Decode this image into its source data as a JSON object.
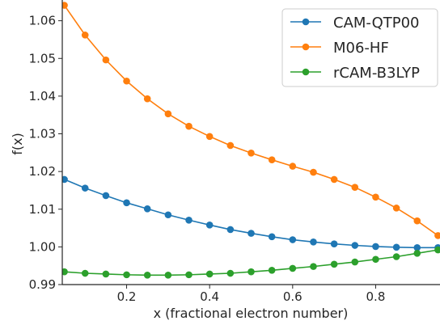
{
  "chart_data": {
    "type": "line",
    "title": "",
    "xlabel": "x (fractional electron number)",
    "ylabel": "f(x)",
    "xlim": [
      0.045,
      0.955
    ],
    "ylim": [
      0.99,
      1.0655
    ],
    "xticks": [
      0.2,
      0.4,
      0.6,
      0.8
    ],
    "xtick_labels": [
      "0.2",
      "0.4",
      "0.6",
      "0.8"
    ],
    "yticks": [
      0.99,
      1.0,
      1.01,
      1.02,
      1.03,
      1.04,
      1.05,
      1.06
    ],
    "ytick_labels": [
      "0.99",
      "1.00",
      "1.01",
      "1.02",
      "1.03",
      "1.04",
      "1.05",
      "1.06"
    ],
    "grid": false,
    "legend_position": "top-right",
    "x": [
      0.05,
      0.1,
      0.15,
      0.2,
      0.25,
      0.3,
      0.35,
      0.4,
      0.45,
      0.5,
      0.55,
      0.6,
      0.65,
      0.7,
      0.75,
      0.8,
      0.85,
      0.9,
      0.95
    ],
    "series": [
      {
        "name": "CAM-QTP00",
        "color": "#1f77b4",
        "values": [
          1.0179,
          1.0156,
          1.0136,
          1.0117,
          1.0101,
          1.0085,
          1.0071,
          1.0058,
          1.0046,
          1.0036,
          1.0027,
          1.0019,
          1.0013,
          1.0008,
          1.0004,
          1.0001,
          0.9999,
          0.9998,
          0.9998
        ]
      },
      {
        "name": "M06-HF",
        "color": "#ff7f0e",
        "values": [
          1.0641,
          1.0562,
          1.0496,
          1.044,
          1.0393,
          1.0353,
          1.032,
          1.0293,
          1.0269,
          1.0249,
          1.0231,
          1.0214,
          1.0198,
          1.0179,
          1.0158,
          1.0132,
          1.0103,
          1.0069,
          1.003
        ]
      },
      {
        "name": "rCAM-B3LYP",
        "color": "#2ca02c",
        "values": [
          0.9934,
          0.993,
          0.9928,
          0.9926,
          0.9925,
          0.9925,
          0.9926,
          0.9928,
          0.993,
          0.9934,
          0.9938,
          0.9943,
          0.9948,
          0.9954,
          0.996,
          0.9967,
          0.9974,
          0.9983,
          0.9992
        ]
      }
    ]
  }
}
